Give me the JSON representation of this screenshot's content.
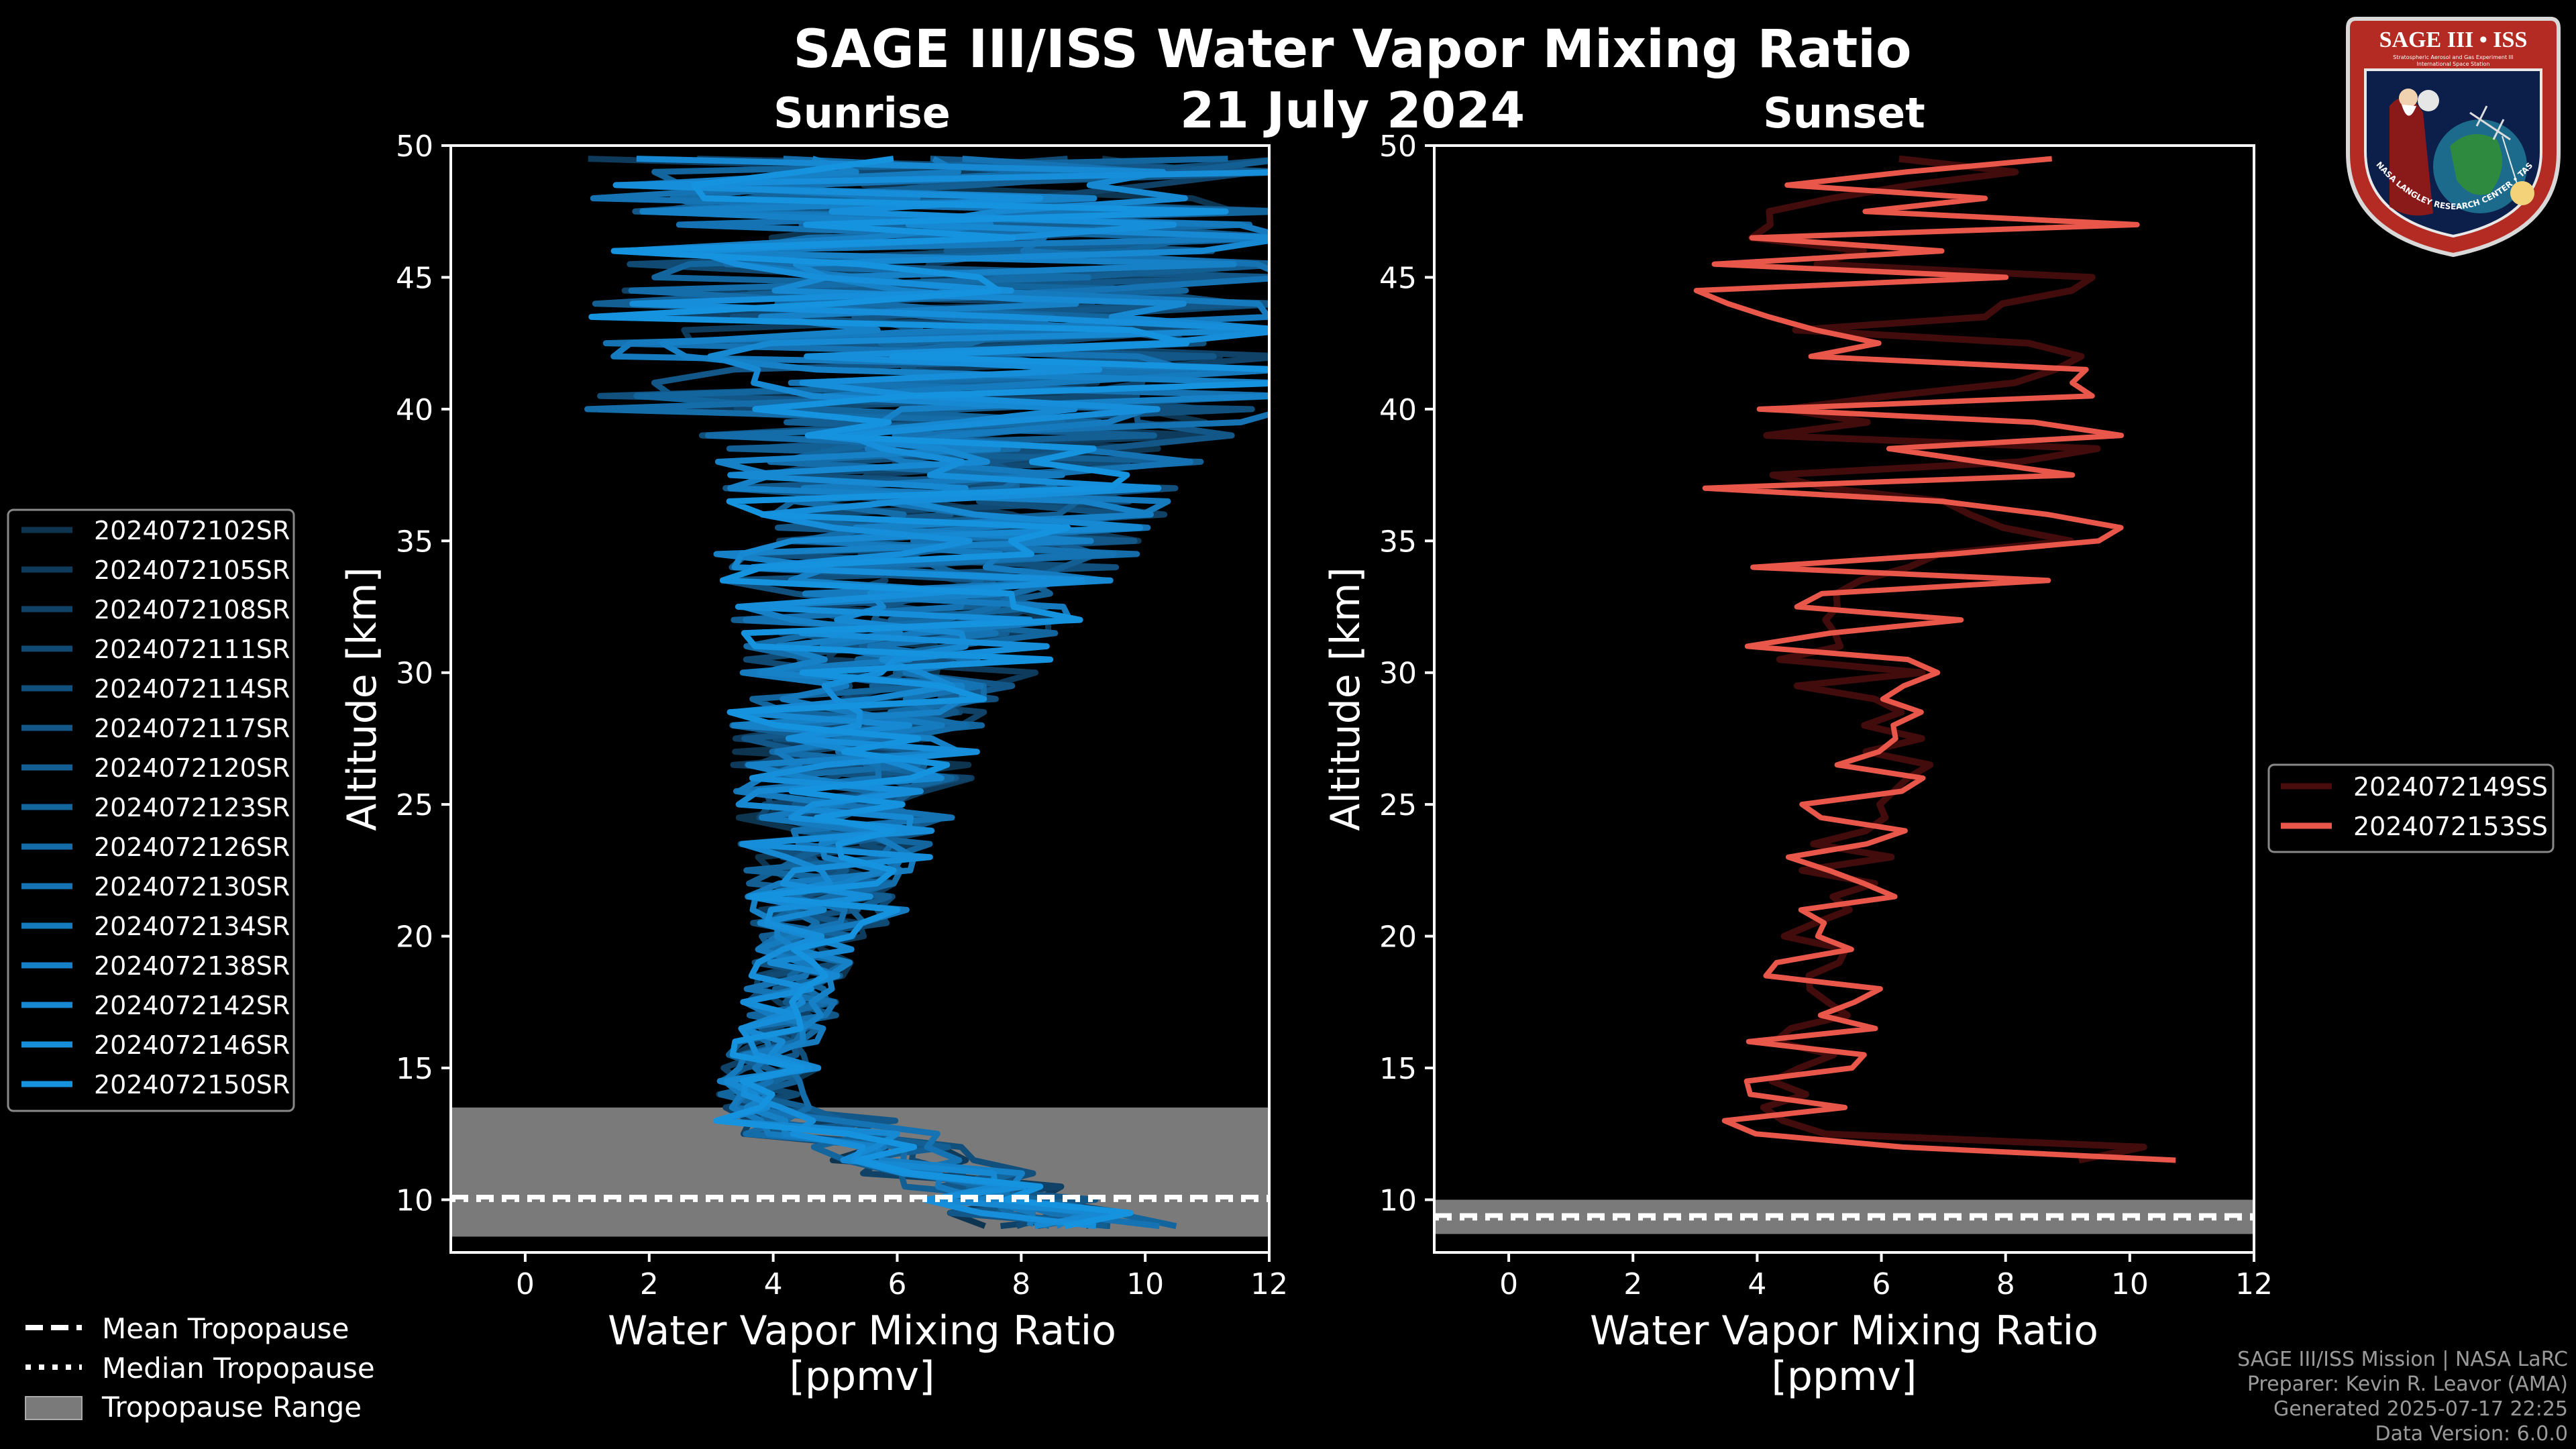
{
  "header": {
    "title": "SAGE III/ISS Water Vapor Mixing Ratio",
    "date": "21 July 2024"
  },
  "logo": {
    "top_text": "SAGE III • ISS",
    "subtitle_line1": "Stratospheric Aerosol and Gas Experiment III",
    "subtitle_line2": "International Space Station",
    "ring_text": "BALL • NASA LANGLEY RESEARCH CENTER • TAS-I • ESA"
  },
  "legend_bottom": {
    "mean": "Mean Tropopause",
    "median": "Median Tropopause",
    "range": "Tropopause Range"
  },
  "credits": {
    "line1": "SAGE III/ISS Mission | NASA LaRC",
    "line2": "Preparer: Kevin R. Leavor (AMA)",
    "line3": "Generated 2025-07-17 22:25",
    "line4": "Data Version: 6.0.0"
  },
  "chart_data": [
    {
      "type": "line",
      "panel": "sunrise",
      "title": "Sunrise",
      "xlabel": "Water Vapor Mixing Ratio [ppmv]",
      "ylabel": "Altitude [km]",
      "xlim": [
        -1.2,
        12
      ],
      "ylim": [
        8,
        50
      ],
      "xticks": [
        0,
        2,
        4,
        6,
        8,
        10,
        12
      ],
      "yticks": [
        10,
        15,
        20,
        25,
        30,
        35,
        40,
        45,
        50
      ],
      "legend_position": "left",
      "tropopause": {
        "mean": 10.1,
        "median": 10.0,
        "range": [
          8.6,
          13.5
        ]
      },
      "series": [
        {
          "name": "2024072102SR",
          "color": "#0d3550"
        },
        {
          "name": "2024072105SR",
          "color": "#0e3b5b"
        },
        {
          "name": "2024072108SR",
          "color": "#0f4266"
        },
        {
          "name": "2024072111SR",
          "color": "#104971"
        },
        {
          "name": "2024072114SR",
          "color": "#11507c"
        },
        {
          "name": "2024072117SR",
          "color": "#125787"
        },
        {
          "name": "2024072120SR",
          "color": "#135e92"
        },
        {
          "name": "2024072123SR",
          "color": "#13659d"
        },
        {
          "name": "2024072126SR",
          "color": "#146ca8"
        },
        {
          "name": "2024072130SR",
          "color": "#1573b3"
        },
        {
          "name": "2024072134SR",
          "color": "#167abe"
        },
        {
          "name": "2024072138SR",
          "color": "#1781c8"
        },
        {
          "name": "2024072142SR",
          "color": "#1788d2"
        },
        {
          "name": "2024072146SR",
          "color": "#178ed9"
        },
        {
          "name": "2024072150SR",
          "color": "#1593df"
        }
      ]
    },
    {
      "type": "line",
      "panel": "sunset",
      "title": "Sunset",
      "xlabel": "Water Vapor Mixing Ratio [ppmv]",
      "ylabel": "Altitude [km]",
      "xlim": [
        -1.2,
        12
      ],
      "ylim": [
        8,
        50
      ],
      "xticks": [
        0,
        2,
        4,
        6,
        8,
        10,
        12
      ],
      "yticks": [
        10,
        15,
        20,
        25,
        30,
        35,
        40,
        45,
        50
      ],
      "legend_position": "right",
      "tropopause": {
        "mean": 9.4,
        "median": 9.3,
        "range": [
          8.7,
          10.0
        ]
      },
      "series": [
        {
          "name": "2024072149SS",
          "color": "#4a0d0d"
        },
        {
          "name": "2024072153SS",
          "color": "#e8574a"
        }
      ]
    }
  ]
}
